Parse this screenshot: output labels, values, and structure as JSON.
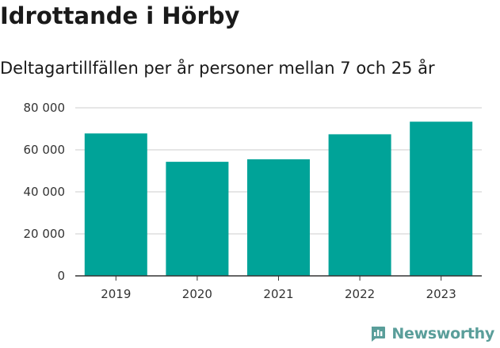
{
  "chart_data": {
    "type": "bar",
    "title": "Idrottande i Hörby",
    "subtitle": "Deltagartillfällen per år personer mellan 7 och 25 år",
    "categories": [
      "2019",
      "2020",
      "2021",
      "2022",
      "2023"
    ],
    "values": [
      67800,
      54300,
      55500,
      67400,
      73400
    ],
    "ylim": [
      0,
      80000
    ],
    "yticks": [
      0,
      20000,
      40000,
      60000,
      80000
    ],
    "ytick_labels": [
      "0",
      "20 000",
      "40 000",
      "60 000",
      "80 000"
    ],
    "xlabel": "",
    "ylabel": "",
    "grid": true,
    "bar_color": "#00a398",
    "grid_color": "#dddddd"
  },
  "branding": {
    "logo_text": "Newsworthy",
    "logo_icon": "bar-chart-document-icon",
    "logo_color": "#5a9e9a"
  }
}
